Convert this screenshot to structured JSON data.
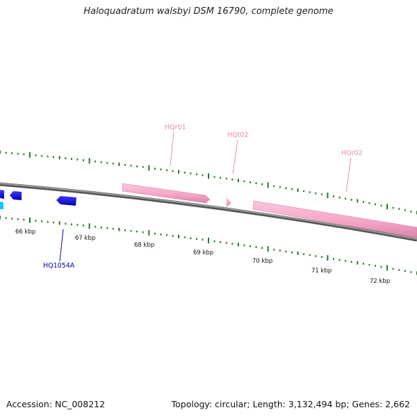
{
  "title": "Haloquadratum walsbyi DSM 16790, complete genome",
  "footer": {
    "accession": "Accession: NC_008212",
    "info": "Topology: circular; Length: 3,132,494 bp; Genes: 2,662"
  },
  "colors": {
    "backbone": "#777777",
    "backbone_dark": "#555555",
    "gc_ticks": "#1f7a1f",
    "rrna": "#f7a6c8",
    "rrna_dark": "#d07aa0",
    "trna": "#f7a6c8",
    "cds_forward": "#1a1aff",
    "cds_reverse": "#0000cc",
    "cds_cyan": "#00c8ff",
    "label_rrna": "#e58ab5",
    "label_cds": "#0000aa"
  },
  "scale_labels": [
    "66 kbp",
    "67 kbp",
    "68 kbp",
    "69 kbp",
    "70 kbp",
    "71 kbp",
    "72 kbp"
  ],
  "features": [
    {
      "label": "HQr01",
      "type": "rRNA"
    },
    {
      "label": "HQt02",
      "type": "tRNA"
    },
    {
      "label": "HQr02",
      "type": "rRNA"
    },
    {
      "label": "HQ1054A",
      "type": "CDS"
    }
  ]
}
